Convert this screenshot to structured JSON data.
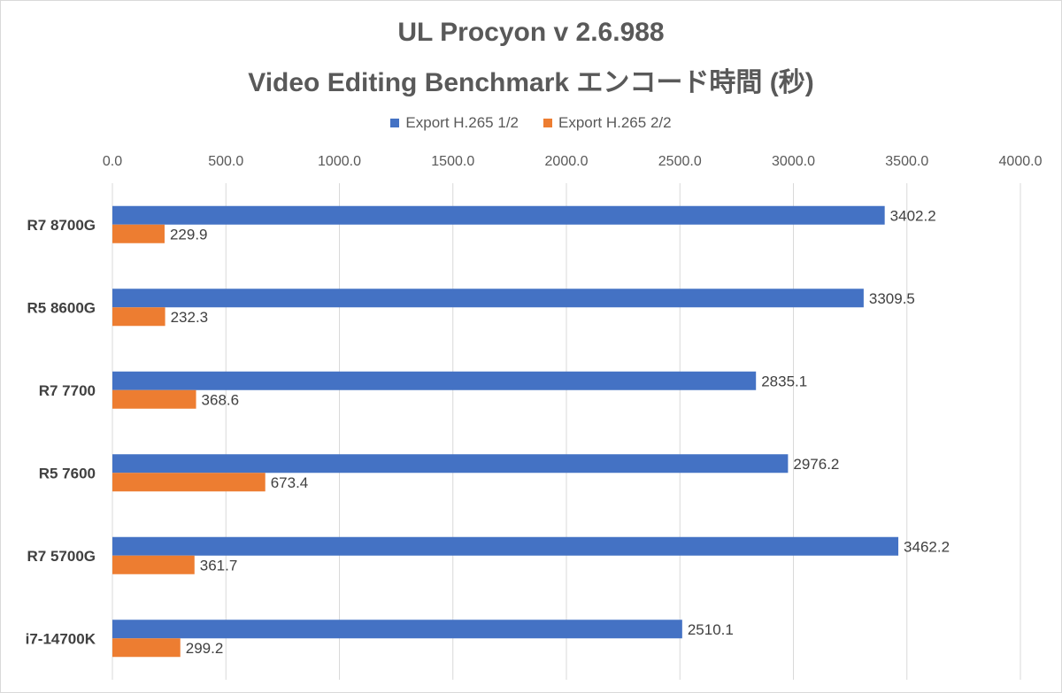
{
  "colors": {
    "series1": "#4472c4",
    "series2": "#ed7d31",
    "grid": "#d9d9d9",
    "text": "#595959"
  },
  "chart_data": {
    "type": "bar",
    "orientation": "horizontal",
    "title": "UL Procyon v 2.6.988",
    "subtitle": "Video Editing Benchmark エンコード時間 (秒)",
    "xlabel": "",
    "ylabel": "",
    "xlim": [
      0,
      4000
    ],
    "x_ticks": [
      "0.0",
      "500.0",
      "1000.0",
      "1500.0",
      "2000.0",
      "2500.0",
      "3000.0",
      "3500.0",
      "4000.0"
    ],
    "x_axis_position": "top",
    "grid": true,
    "legend_position": "top",
    "categories": [
      "R7 8700G",
      "R5 8600G",
      "R7 7700",
      "R5 7600",
      "R7 5700G",
      "i7-14700K"
    ],
    "series": [
      {
        "name": "Export H.265 1/2",
        "values": [
          3402.2,
          3309.5,
          2835.1,
          2976.2,
          3462.2,
          2510.1
        ],
        "labels": [
          "3402.2",
          "3309.5",
          "2835.1",
          "2976.2",
          "3462.2",
          "2510.1"
        ]
      },
      {
        "name": "Export H.265 2/2",
        "values": [
          229.9,
          232.3,
          368.6,
          673.4,
          361.7,
          299.2
        ],
        "labels": [
          "229.9",
          "232.3",
          "368.6",
          "673.4",
          "361.7",
          "299.2"
        ]
      }
    ]
  }
}
